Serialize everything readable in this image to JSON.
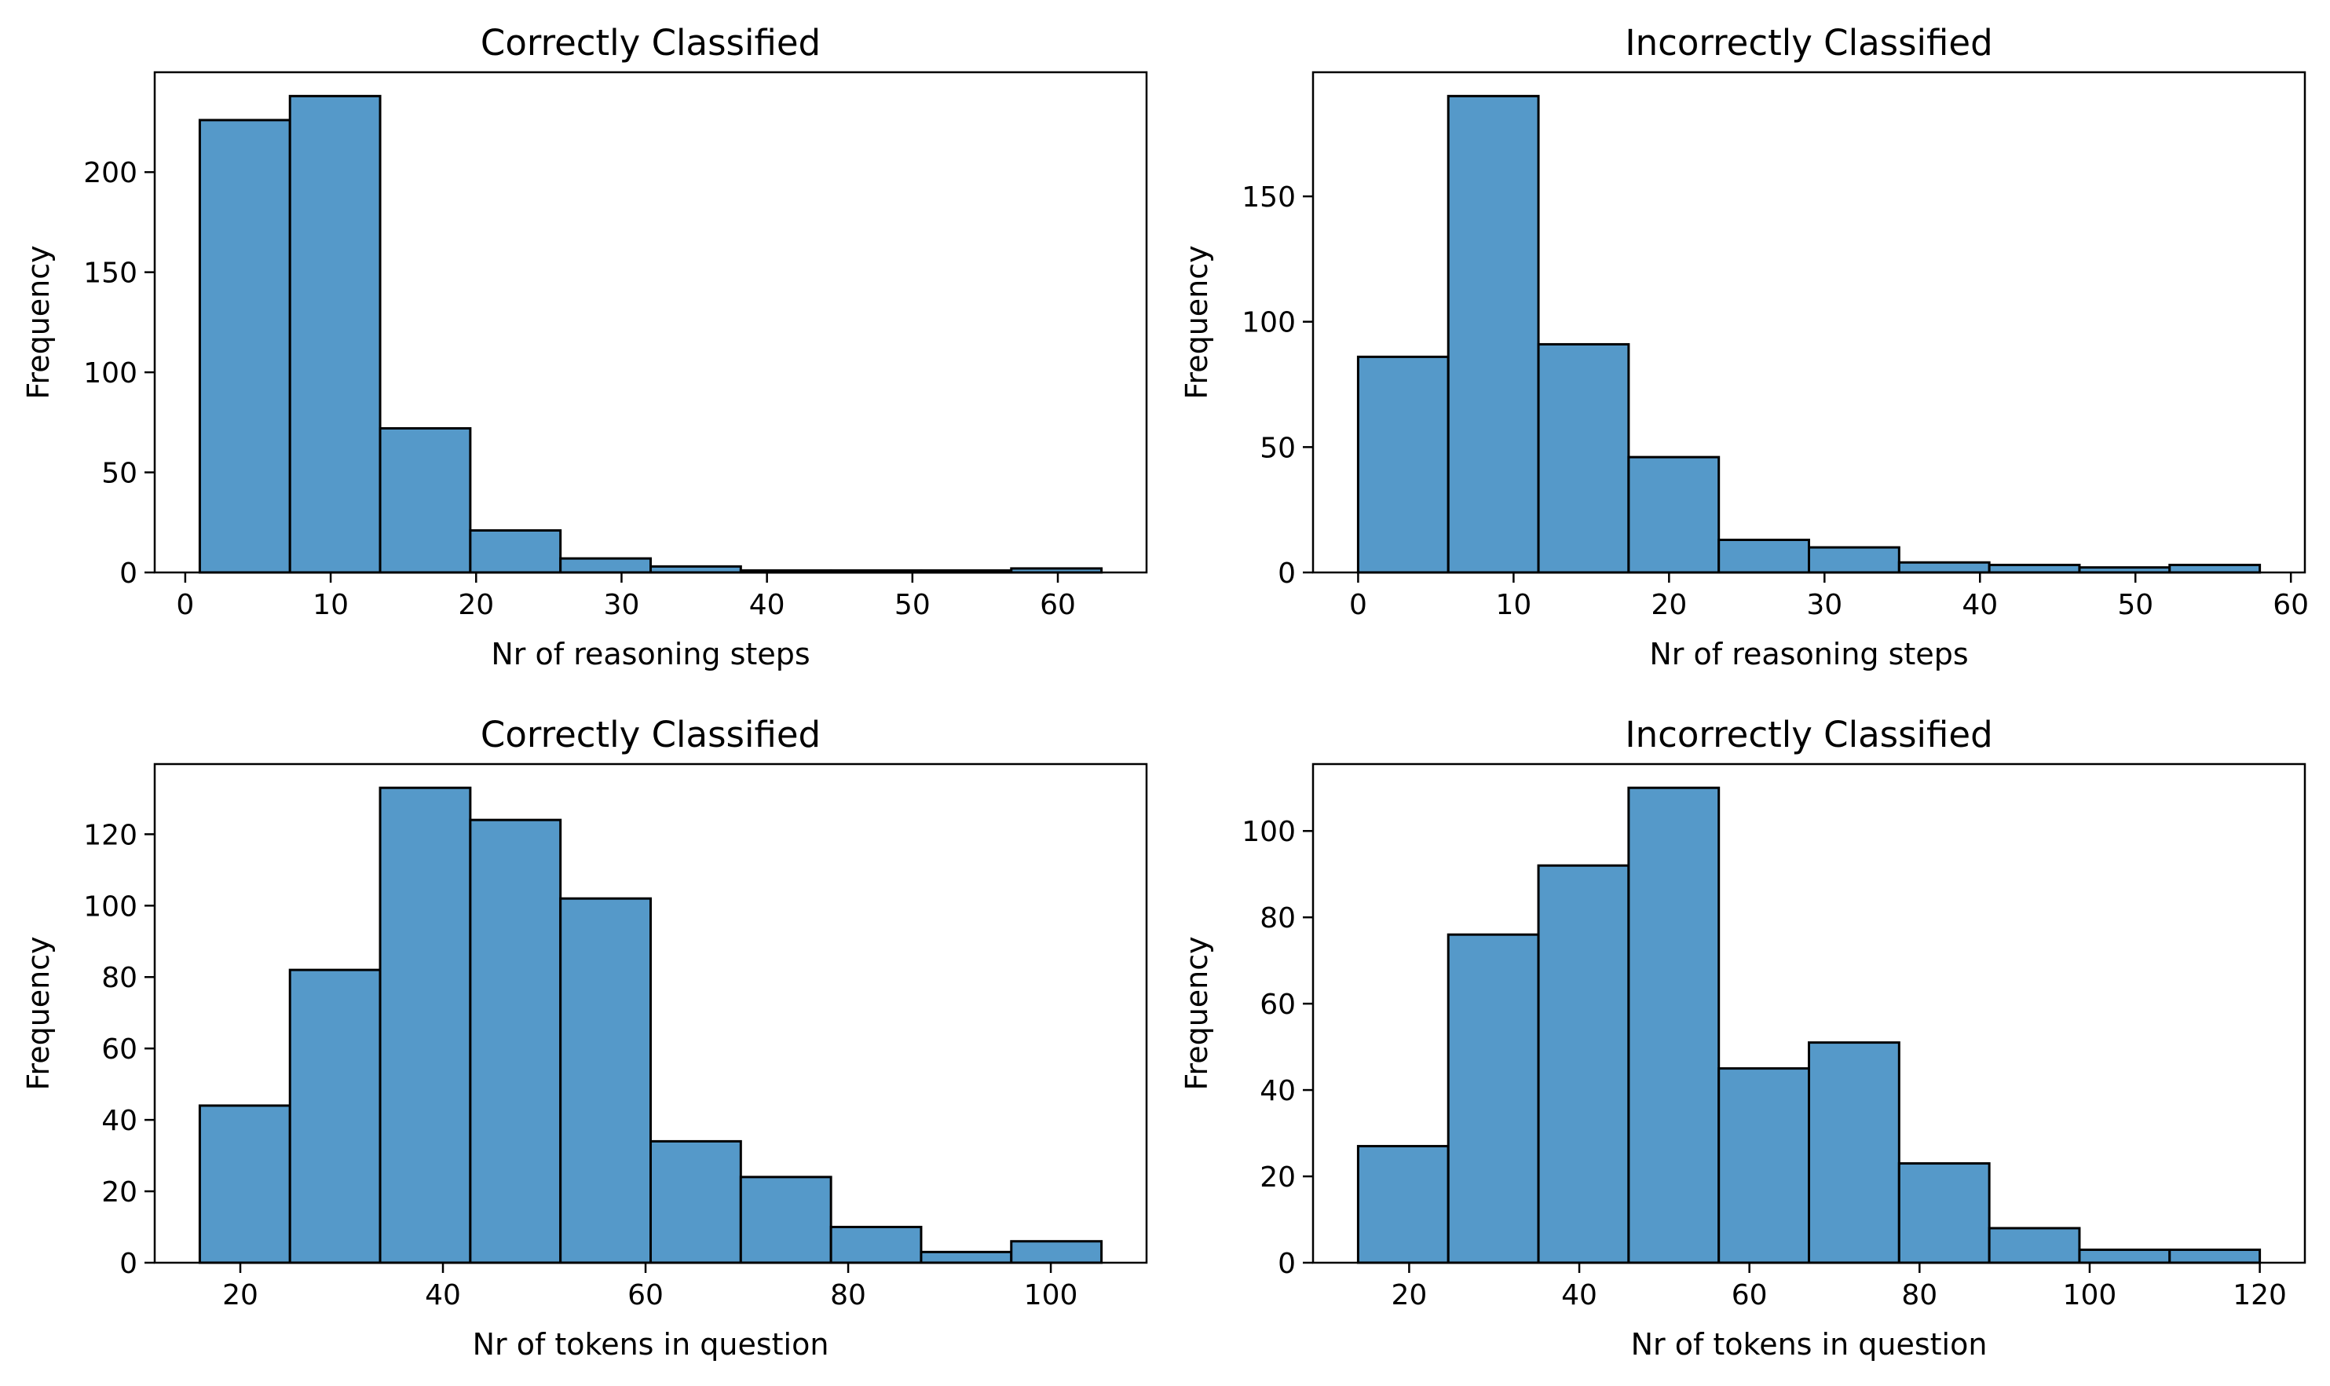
{
  "chart_data": [
    {
      "type": "bar",
      "title": "Correctly Classified",
      "xlabel": "Nr of reasoning steps",
      "ylabel": "Frequency",
      "bin_edges": [
        1,
        7.2,
        13.4,
        19.6,
        25.8,
        32,
        38.2,
        44.4,
        50.6,
        56.8,
        63
      ],
      "values": [
        226,
        238,
        72,
        21,
        7,
        3,
        1,
        1,
        1,
        2
      ],
      "xlim": [
        -2.1,
        66.1
      ],
      "ylim": [
        0,
        249.9
      ],
      "xticks": [
        0,
        10,
        20,
        30,
        40,
        50,
        60
      ],
      "yticks": [
        0,
        50,
        100,
        150,
        200
      ]
    },
    {
      "type": "bar",
      "title": "Incorrectly Classified",
      "xlabel": "Nr of reasoning steps",
      "ylabel": "Frequency",
      "bin_edges": [
        0,
        5.8,
        11.6,
        17.4,
        23.2,
        29,
        34.8,
        40.6,
        46.4,
        52.2,
        58
      ],
      "values": [
        86,
        190,
        91,
        46,
        13,
        10,
        4,
        3,
        2,
        3
      ],
      "xlim": [
        -2.9,
        60.9
      ],
      "ylim": [
        0,
        199.5
      ],
      "xticks": [
        0,
        10,
        20,
        30,
        40,
        50,
        60
      ],
      "yticks": [
        0,
        50,
        100,
        150
      ]
    },
    {
      "type": "bar",
      "title": "Correctly Classified",
      "xlabel": "Nr of tokens in question",
      "ylabel": "Frequency",
      "bin_edges": [
        16,
        24.9,
        33.8,
        42.7,
        51.6,
        60.5,
        69.4,
        78.3,
        87.2,
        96.1,
        105
      ],
      "values": [
        44,
        82,
        133,
        124,
        102,
        34,
        24,
        10,
        3,
        6
      ],
      "xlim": [
        11.55,
        109.45
      ],
      "ylim": [
        0,
        139.65
      ],
      "xticks": [
        20,
        40,
        60,
        80,
        100
      ],
      "yticks": [
        0,
        20,
        40,
        60,
        80,
        100,
        120
      ]
    },
    {
      "type": "bar",
      "title": "Incorrectly Classified",
      "xlabel": "Nr of tokens in question",
      "ylabel": "Frequency",
      "bin_edges": [
        14,
        24.6,
        35.2,
        45.8,
        56.4,
        67,
        77.6,
        88.2,
        98.8,
        109.4,
        120
      ],
      "values": [
        27,
        76,
        92,
        110,
        45,
        51,
        23,
        8,
        3,
        3
      ],
      "xlim": [
        8.7,
        125.3
      ],
      "ylim": [
        0,
        115.5
      ],
      "xticks": [
        20,
        40,
        60,
        80,
        100,
        120
      ],
      "yticks": [
        0,
        20,
        40,
        60,
        80,
        100
      ]
    }
  ]
}
